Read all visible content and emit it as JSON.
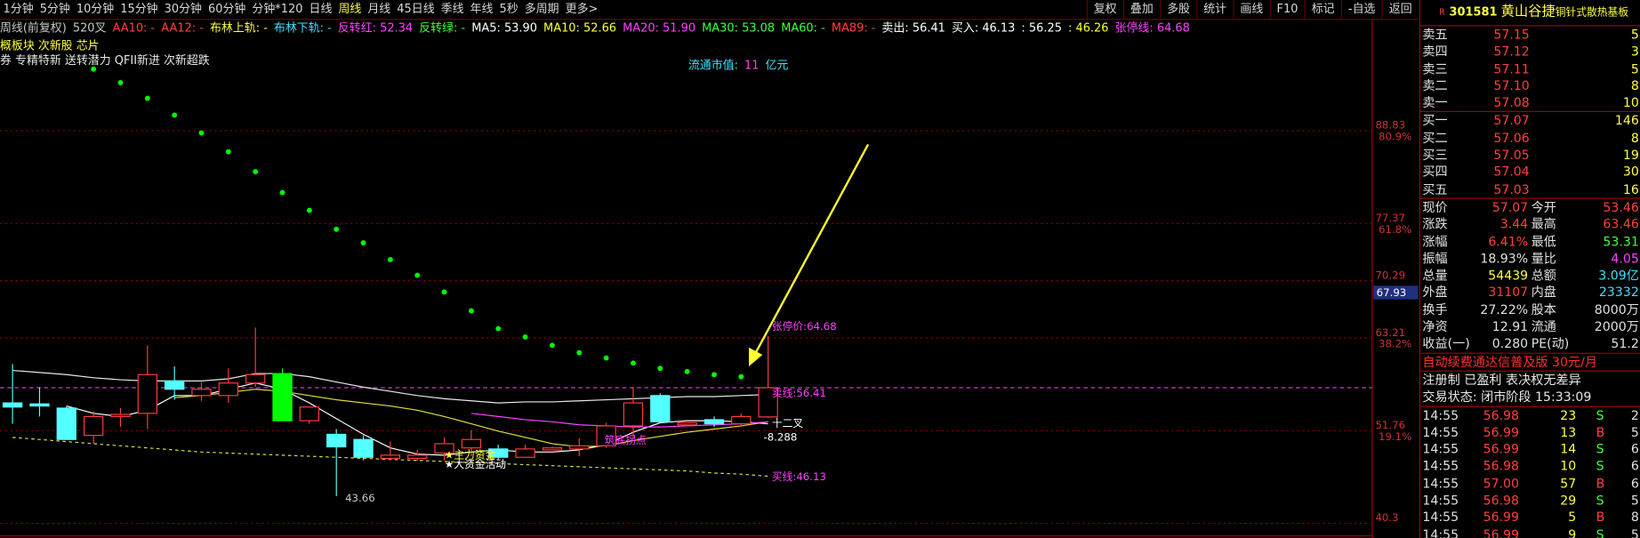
{
  "toolbar": {
    "periods": [
      "1分钟",
      "5分钟",
      "10分钟",
      "15分钟",
      "30分钟",
      "60分钟",
      "分钟*120",
      "日线",
      "周线",
      "月线",
      "45日线",
      "季线",
      "年线",
      "5秒",
      "多周期",
      "更多>"
    ],
    "active_index": 8,
    "buttons": [
      "复权",
      "叠加",
      "多股",
      "统计",
      "画线",
      "F10",
      "标记",
      "-自选",
      "返回"
    ]
  },
  "indicator_line": [
    {
      "text": "周线(前复权)",
      "color": "#c8c8c8"
    },
    {
      "text": "520叉",
      "color": "#c8c8c8"
    },
    {
      "text": "AA10: -",
      "color": "#ff4040"
    },
    {
      "text": "AA12: -",
      "color": "#ff4040"
    },
    {
      "text": "布林上轨: -",
      "color": "#ffff40"
    },
    {
      "text": "布林下轨: -",
      "color": "#40e0ff"
    },
    {
      "text": "反转红: 52.34",
      "color": "#ff40ff"
    },
    {
      "text": "反转绿: -",
      "color": "#40ff40"
    },
    {
      "text": "MA5: 53.90",
      "color": "#ffffff"
    },
    {
      "text": "MA10: 52.66",
      "color": "#ffff40"
    },
    {
      "text": "MA20: 51.90",
      "color": "#ff40ff"
    },
    {
      "text": "MA30: 53.08",
      "color": "#40ff40"
    },
    {
      "text": "MA60: -",
      "color": "#40ff40"
    },
    {
      "text": "MA89: -",
      "color": "#ff4040"
    },
    {
      "text": "卖出: 56.41",
      "color": "#ffffff"
    },
    {
      "text": "买入: 46.13",
      "color": "#ffffff"
    },
    {
      "text": ": 56.25",
      "color": "#ffffff"
    },
    {
      "text": ": 46.26",
      "color": "#ffff40"
    },
    {
      "text": "张停线: 64.68",
      "color": "#ff40ff"
    }
  ],
  "tags_1": "概板块 次新股 芯片",
  "tags_2": "券 专精特新 送转潜力 QFII新进 次新超跌",
  "float_cap": {
    "label": "流通市值:",
    "value": "11",
    "unit": "亿元"
  },
  "chart_data": {
    "type": "candlestick",
    "ylim": [
      39.01,
      102.41
    ],
    "yticks": [
      88.83,
      77.37,
      70.29,
      63.21,
      51.76,
      40.3
    ],
    "fib_ticks": [
      {
        "value": 88.83,
        "label": "80.9%"
      },
      {
        "value": 77.37,
        "label": "61.8%"
      },
      {
        "value": 63.21,
        "label": "38.2%"
      },
      {
        "value": 51.76,
        "label": "19.1%"
      }
    ],
    "cursor_value": "67.93",
    "current_price": 57.07,
    "up_color": "#ff3c3c",
    "down_color": "#54ffff",
    "special": {
      "index": 10,
      "color": "#00ff00"
    },
    "candles": [
      [
        55.19,
        59.98,
        52.61,
        54.68
      ],
      [
        55.07,
        57.14,
        53.51,
        54.81
      ],
      [
        54.55,
        54.81,
        50.67,
        50.67
      ],
      [
        51.18,
        54.16,
        50.15,
        53.51
      ],
      [
        53.51,
        54.55,
        52.22,
        53.77
      ],
      [
        53.9,
        62.31,
        51.96,
        58.69
      ],
      [
        57.91,
        59.72,
        55.58,
        56.88
      ],
      [
        56.1,
        57.78,
        55.45,
        56.88
      ],
      [
        56.1,
        59.46,
        55.19,
        57.65
      ],
      [
        57.65,
        64.51,
        57.14,
        58.69
      ],
      [
        58.82,
        59.46,
        52.99,
        52.99
      ],
      [
        52.99,
        54.68,
        52.61,
        54.68
      ],
      [
        51.31,
        51.96,
        43.66,
        49.76
      ],
      [
        50.67,
        51.18,
        48.08,
        48.47
      ],
      [
        48.34,
        50.41,
        48.08,
        48.73
      ],
      [
        48.34,
        49.38,
        48.08,
        48.73
      ],
      [
        48.99,
        50.93,
        48.08,
        50.15
      ],
      [
        49.63,
        51.83,
        48.6,
        50.67
      ],
      [
        49.5,
        50.02,
        48.08,
        48.47
      ],
      [
        48.47,
        50.02,
        48.47,
        49.5
      ],
      [
        49.38,
        49.76,
        49.38,
        49.63
      ],
      [
        49.5,
        50.8,
        48.6,
        49.89
      ],
      [
        49.89,
        52.74,
        49.63,
        52.35
      ],
      [
        52.35,
        57.14,
        50.8,
        55.19
      ],
      [
        56.1,
        56.36,
        52.86,
        52.86
      ],
      [
        52.48,
        52.74,
        52.48,
        52.74
      ],
      [
        53.12,
        53.51,
        52.22,
        52.61
      ],
      [
        52.61,
        53.9,
        52.22,
        53.51
      ],
      [
        53.46,
        63.46,
        53.31,
        57.07
      ]
    ],
    "lines": [
      {
        "color": "#e8e8e8",
        "dash": false,
        "values": [
          59.21,
          58.95,
          58.69,
          58.3,
          58.05,
          57.91,
          57.91,
          57.91,
          58.17,
          58.82,
          58.82,
          58.43,
          57.78,
          57.14,
          56.62,
          56.1,
          55.71,
          55.45,
          55.19,
          55.32,
          55.32,
          55.45,
          55.58,
          55.71,
          55.84,
          55.97,
          55.97,
          56.1,
          56.23
        ]
      },
      {
        "color": "#e0e040",
        "dash": true,
        "values": [
          50.93,
          50.67,
          50.41,
          50.15,
          49.89,
          49.63,
          49.38,
          49.12,
          48.99,
          48.86,
          48.73,
          48.6,
          48.47,
          48.34,
          48.21,
          48.08,
          47.95,
          47.82,
          47.69,
          47.56,
          47.43,
          47.3,
          47.17,
          47.04,
          46.91,
          46.78,
          46.52,
          46.39,
          46.13
        ]
      },
      {
        "color": "#ffffff",
        "dash": false,
        "values": [
          null,
          null,
          54.81,
          53.9,
          53.51,
          54.29,
          56.1,
          56.1,
          56.88,
          57.65,
          56.88,
          55.19,
          53.25,
          51.31,
          49.63,
          48.86,
          48.73,
          49.12,
          49.38,
          49.12,
          49.12,
          49.38,
          50.02,
          51.57,
          52.74,
          52.99,
          52.99,
          52.86,
          52.61
        ]
      },
      {
        "color": "#e0e040",
        "dash": false,
        "values": [
          null,
          null,
          null,
          null,
          null,
          null,
          55.84,
          56.1,
          56.49,
          56.88,
          56.62,
          56.1,
          55.58,
          55.19,
          54.81,
          54.29,
          53.51,
          52.61,
          51.7,
          50.93,
          50.15,
          49.76,
          49.89,
          50.54,
          51.06,
          51.57,
          51.96,
          52.35,
          52.86
        ]
      },
      {
        "color": "#ff40ff",
        "dash": false,
        "values": [
          null,
          null,
          null,
          null,
          null,
          null,
          null,
          null,
          null,
          null,
          null,
          null,
          null,
          null,
          null,
          null,
          null,
          53.9,
          53.51,
          53.12,
          52.86,
          52.48,
          52.35,
          52.22,
          52.22,
          52.35,
          52.48,
          52.61,
          52.86
        ]
      }
    ],
    "sar": {
      "color": "#00ff00",
      "values": [
        null,
        null,
        null,
        96.46,
        94.78,
        92.84,
        90.77,
        88.57,
        86.24,
        83.78,
        81.19,
        78.99,
        76.66,
        74.98,
        72.91,
        70.97,
        68.9,
        66.57,
        64.37,
        63.34,
        62.31,
        61.4,
        60.75,
        60.11,
        59.46,
        59.07,
        58.69,
        58.43,
        null
      ]
    },
    "annotations": [
      "张停价:64.68",
      "卖线:56.41",
      "买线:46.13",
      "十二叉",
      "-8.288",
      "43.66",
      "★主力资金",
      "★大资金活动",
      "筑底拐点"
    ]
  },
  "quote": {
    "code": "301581",
    "name": "黄山谷捷",
    "concept": "铜针式散热基板",
    "asks": [
      [
        "卖五",
        "57.15",
        "5"
      ],
      [
        "卖四",
        "57.12",
        "3"
      ],
      [
        "卖三",
        "57.11",
        "5"
      ],
      [
        "卖二",
        "57.10",
        "8"
      ],
      [
        "卖一",
        "57.08",
        "10"
      ]
    ],
    "bids": [
      [
        "买一",
        "57.07",
        "146"
      ],
      [
        "买二",
        "57.06",
        "8"
      ],
      [
        "买三",
        "57.05",
        "19"
      ],
      [
        "买四",
        "57.04",
        "30"
      ],
      [
        "买五",
        "57.03",
        "16"
      ]
    ],
    "stats": [
      [
        "现价",
        "57.07",
        "今开",
        "53.46"
      ],
      [
        "涨跌",
        "3.44",
        "最高",
        "63.46"
      ],
      [
        "涨幅",
        "6.41%",
        "最低",
        "53.31"
      ],
      [
        "振幅",
        "18.93%",
        "量比",
        "4.05"
      ],
      [
        "总量",
        "54439",
        "总额",
        "3.09亿"
      ],
      [
        "外盘",
        "31107",
        "内盘",
        "23332"
      ],
      [
        "换手",
        "27.22%",
        "股本",
        "8000万"
      ],
      [
        "净资",
        "12.91",
        "流通",
        "2000万"
      ],
      [
        "收益(一)",
        "0.280",
        "PE(动)",
        "51.2"
      ]
    ],
    "stat_colors": [
      [
        "#ff4040",
        "#ff4040"
      ],
      [
        "#ff4040",
        "#ff4040"
      ],
      [
        "#ff4040",
        "#40ff40"
      ],
      [
        "#e0e0e0",
        "#ff40ff"
      ],
      [
        "#ffff40",
        "#40e0ff"
      ],
      [
        "#ff4040",
        "#40e0ff"
      ],
      [
        "#e0e0e0",
        "#e0e0e0"
      ],
      [
        "#e0e0e0",
        "#e0e0e0"
      ],
      [
        "#e0e0e0",
        "#e0e0e0"
      ]
    ],
    "promo": "自动续费通达信普及版  30元/月",
    "flags": "注册制 已盈利 表决权无差异",
    "status": "交易状态: 闭市阶段 15:33:09",
    "trades": [
      [
        "14:55",
        "56.98",
        "23",
        "S",
        "2"
      ],
      [
        "14:55",
        "56.99",
        "13",
        "B",
        "5"
      ],
      [
        "14:55",
        "56.99",
        "14",
        "S",
        "6"
      ],
      [
        "14:55",
        "56.98",
        "10",
        "S",
        "6"
      ],
      [
        "14:55",
        "57.00",
        "57",
        "B",
        "6"
      ],
      [
        "14:55",
        "56.98",
        "29",
        "S",
        "5"
      ],
      [
        "14:55",
        "56.99",
        "5",
        "B",
        "8"
      ],
      [
        "14:55",
        "56.99",
        "9",
        "S",
        "5"
      ]
    ]
  }
}
